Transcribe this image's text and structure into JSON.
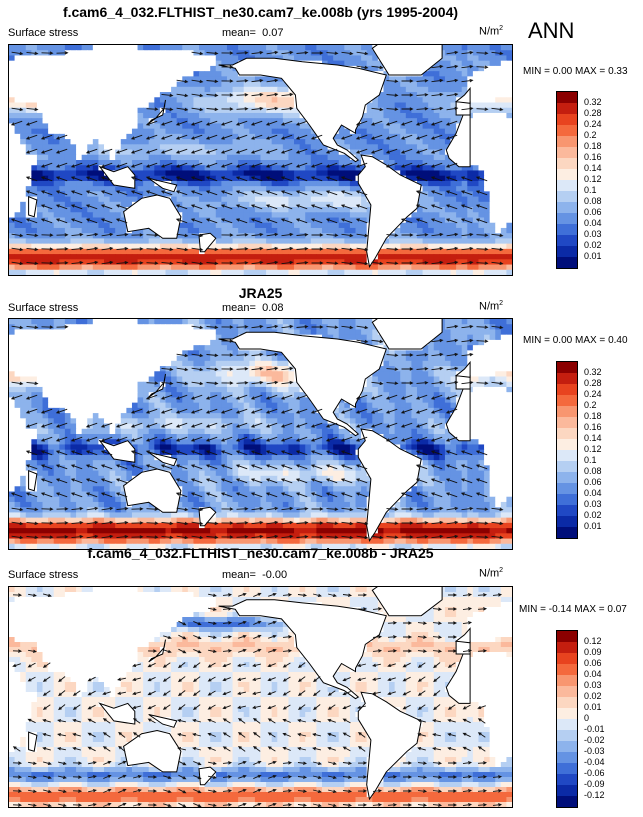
{
  "season": "ANN",
  "palette": {
    "land": "#ffffff",
    "coast": "#000000",
    "arrow": "#111111"
  },
  "panels": [
    {
      "title": "f.cam6_4_032.FLTHIST_ne30.cam7_ke.008b (yrs 1995-2004)",
      "variable": "Surface stress",
      "mean_label": "mean=",
      "mean_value": "0.07",
      "units": "N/m",
      "units_sup": "2",
      "min_label": "MIN =",
      "min_value": "0.00",
      "max_label": "MAX =",
      "max_value": "0.33",
      "colorbar": {
        "labels": [
          "0.32",
          "0.28",
          "0.24",
          "0.2",
          "0.18",
          "0.16",
          "0.14",
          "0.12",
          "0.1",
          "0.08",
          "0.06",
          "0.04",
          "0.03",
          "0.02",
          "0.01"
        ],
        "colors": [
          "#8b0000",
          "#c41e0f",
          "#e8431f",
          "#f4693d",
          "#f89670",
          "#fbb99c",
          "#fcd7c1",
          "#fdeee2",
          "#dce8f8",
          "#b5cff2",
          "#8db3ec",
          "#6593e3",
          "#3f6fd8",
          "#2048c4",
          "#0b2aa6",
          "#000e7a"
        ]
      },
      "field": "model"
    },
    {
      "title": "JRA25",
      "variable": "Surface stress",
      "mean_label": "mean=",
      "mean_value": "0.08",
      "units": "N/m",
      "units_sup": "2",
      "min_label": "MIN =",
      "min_value": "0.00",
      "max_label": "MAX =",
      "max_value": "0.40",
      "colorbar": {
        "labels": [
          "0.32",
          "0.28",
          "0.24",
          "0.2",
          "0.18",
          "0.16",
          "0.14",
          "0.12",
          "0.1",
          "0.08",
          "0.06",
          "0.04",
          "0.03",
          "0.02",
          "0.01"
        ],
        "colors": [
          "#8b0000",
          "#c41e0f",
          "#e8431f",
          "#f4693d",
          "#f89670",
          "#fbb99c",
          "#fcd7c1",
          "#fdeee2",
          "#dce8f8",
          "#b5cff2",
          "#8db3ec",
          "#6593e3",
          "#3f6fd8",
          "#2048c4",
          "#0b2aa6",
          "#000e7a"
        ]
      },
      "field": "obs"
    },
    {
      "title": "f.cam6_4_032.FLTHIST_ne30.cam7_ke.008b - JRA25",
      "variable": "Surface stress",
      "mean_label": "mean=",
      "mean_value": "-0.00",
      "units": "N/m",
      "units_sup": "2",
      "min_label": "MIN =",
      "min_value": "-0.14",
      "max_label": "MAX =",
      "max_value": "0.07",
      "colorbar": {
        "labels": [
          "0.12",
          "0.09",
          "0.06",
          "0.04",
          "0.03",
          "0.02",
          "0.01",
          "0",
          "-0.01",
          "-0.02",
          "-0.03",
          "-0.04",
          "-0.06",
          "-0.09",
          "-0.12"
        ],
        "colors": [
          "#8b0000",
          "#c41e0f",
          "#e8431f",
          "#f4693d",
          "#f89670",
          "#fbb99c",
          "#fcd7c1",
          "#fdeee2",
          "#dce8f8",
          "#b5cff2",
          "#8db3ec",
          "#6593e3",
          "#3f6fd8",
          "#2048c4",
          "#0b2aa6",
          "#000e7a"
        ]
      },
      "field": "diff"
    }
  ]
}
